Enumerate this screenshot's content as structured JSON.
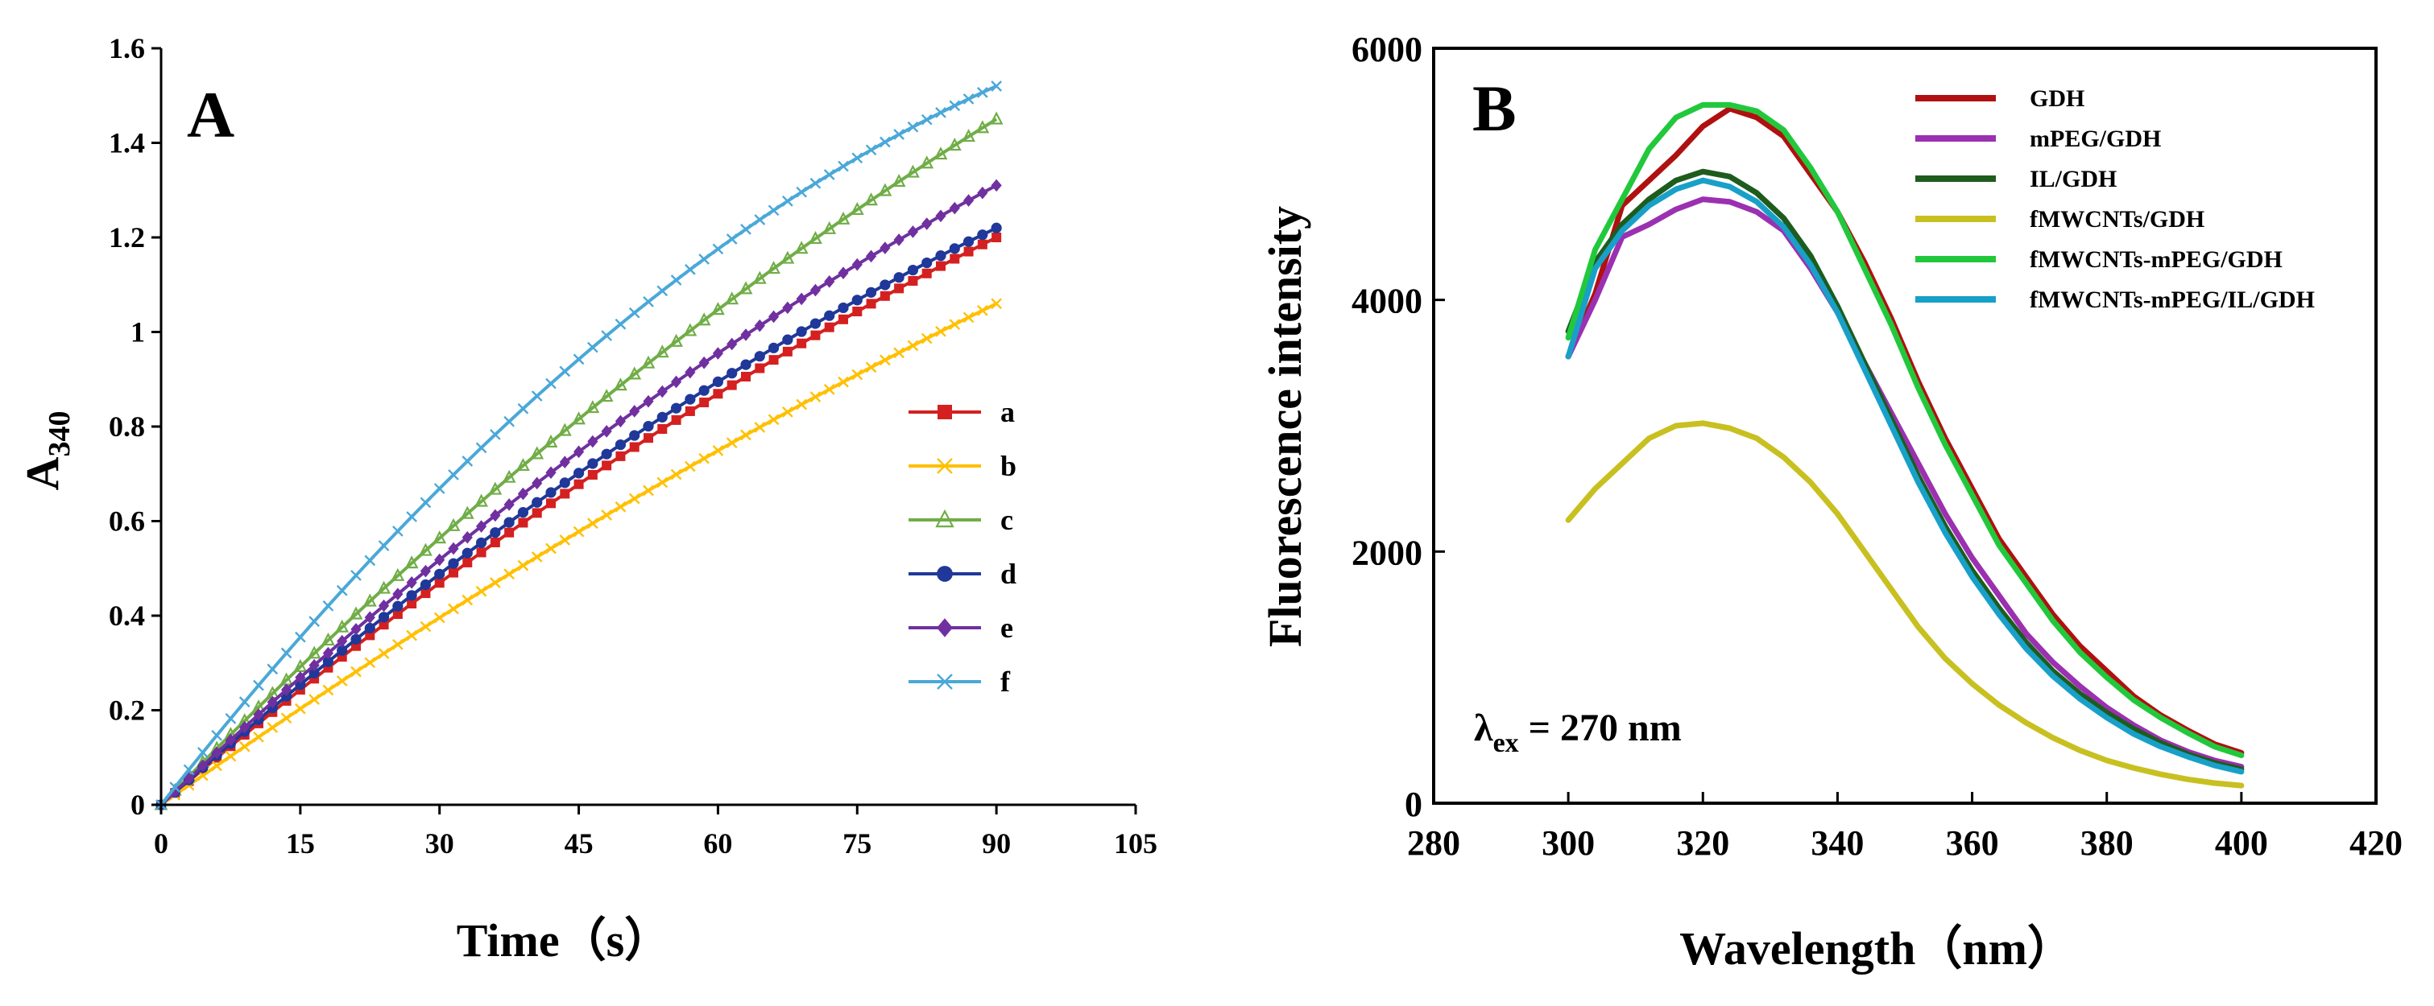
{
  "chart_data": [
    {
      "panel": "A",
      "type": "line",
      "title": "",
      "panel_label": "A",
      "xlabel": "Time（s）",
      "ylabel_main": "A",
      "ylabel_sub": "340",
      "xlim": [
        0,
        105
      ],
      "ylim": [
        0,
        1.6
      ],
      "xticks": [
        "0",
        "15",
        "30",
        "45",
        "60",
        "75",
        "90",
        "105"
      ],
      "yticks": [
        "0",
        "0.2",
        "0.4",
        "0.6",
        "0.8",
        "1",
        "1.2",
        "1.4",
        "1.6"
      ],
      "grid": false,
      "legend_position": "right",
      "x_start": 0,
      "x_end": 90,
      "x_step": 1.5,
      "series": [
        {
          "name": "a",
          "color": "#d42020",
          "marker": "square",
          "final_value": 1.2,
          "curvature": 0.26
        },
        {
          "name": "b",
          "color": "#ffc000",
          "marker": "x",
          "final_value": 1.06,
          "curvature": 0.18
        },
        {
          "name": "c",
          "color": "#70ad47",
          "marker": "triangle",
          "final_value": 1.45,
          "curvature": 0.25
        },
        {
          "name": "d",
          "color": "#1f3899",
          "marker": "circle",
          "final_value": 1.22,
          "curvature": 0.3
        },
        {
          "name": "e",
          "color": "#7030a0",
          "marker": "diamond",
          "final_value": 1.31,
          "curvature": 0.28
        },
        {
          "name": "f",
          "color": "#4aa8d8",
          "marker": "x",
          "final_value": 1.52,
          "curvature": 0.48
        }
      ]
    },
    {
      "panel": "B",
      "type": "line",
      "title": "",
      "panel_label": "B",
      "xlabel": "Wavelength（nm）",
      "ylabel": "Fluorescence intensity",
      "xlim": [
        280,
        420
      ],
      "ylim": [
        0,
        6000
      ],
      "xticks": [
        "280",
        "300",
        "320",
        "340",
        "360",
        "380",
        "400",
        "420"
      ],
      "yticks": [
        "0",
        "2000",
        "4000",
        "6000"
      ],
      "grid": false,
      "legend_position": "top-right",
      "annotation_main": "λ",
      "annotation_sub": "ex",
      "annotation_rest": " = 270 nm",
      "x": [
        300,
        304,
        308,
        312,
        316,
        320,
        324,
        328,
        332,
        336,
        340,
        344,
        348,
        352,
        356,
        360,
        364,
        368,
        372,
        376,
        380,
        384,
        388,
        392,
        396,
        400
      ],
      "series": [
        {
          "name": "GDH",
          "color": "#b01010",
          "values": [
            3550,
            4050,
            4750,
            4950,
            5150,
            5380,
            5520,
            5450,
            5300,
            5000,
            4700,
            4300,
            3850,
            3350,
            2900,
            2500,
            2100,
            1800,
            1500,
            1250,
            1050,
            850,
            700,
            580,
            470,
            400
          ]
        },
        {
          "name": "mPEG/GDH",
          "color": "#9b30b0",
          "values": [
            3550,
            4000,
            4500,
            4600,
            4720,
            4800,
            4780,
            4700,
            4550,
            4250,
            3900,
            3500,
            3100,
            2700,
            2300,
            1950,
            1650,
            1350,
            1120,
            930,
            760,
            620,
            500,
            410,
            340,
            290
          ]
        },
        {
          "name": "IL/GDH",
          "color": "#1e5c1e",
          "values": [
            3750,
            4300,
            4600,
            4800,
            4950,
            5020,
            4980,
            4850,
            4650,
            4350,
            3950,
            3500,
            3050,
            2600,
            2200,
            1850,
            1550,
            1280,
            1050,
            870,
            720,
            590,
            480,
            390,
            320,
            270
          ]
        },
        {
          "name": "fMWCNTs/GDH",
          "color": "#c8c020",
          "values": [
            2250,
            2500,
            2700,
            2900,
            3000,
            3020,
            2980,
            2900,
            2750,
            2550,
            2300,
            2000,
            1700,
            1400,
            1150,
            950,
            780,
            640,
            520,
            420,
            340,
            280,
            230,
            190,
            160,
            140
          ]
        },
        {
          "name": "fMWCNTs-mPEG/GDH",
          "color": "#22c83c",
          "values": [
            3700,
            4400,
            4800,
            5200,
            5450,
            5550,
            5550,
            5500,
            5350,
            5050,
            4700,
            4250,
            3800,
            3300,
            2850,
            2450,
            2050,
            1750,
            1450,
            1200,
            1000,
            820,
            680,
            560,
            450,
            380
          ]
        },
        {
          "name": "fMWCNTs-mPEG/IL/GDH",
          "color": "#18a0c8",
          "values": [
            3550,
            4250,
            4550,
            4750,
            4880,
            4950,
            4900,
            4780,
            4580,
            4280,
            3900,
            3450,
            3000,
            2550,
            2150,
            1800,
            1500,
            1230,
            1010,
            830,
            680,
            550,
            450,
            370,
            300,
            250
          ]
        }
      ]
    }
  ]
}
